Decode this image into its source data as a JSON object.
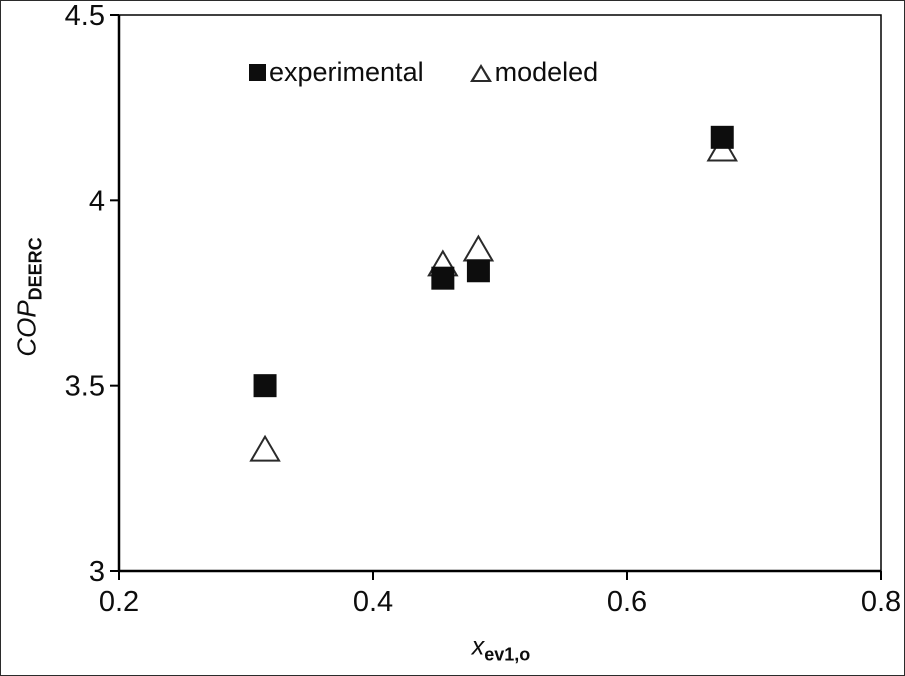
{
  "figure": {
    "background": "#ffffff",
    "border_color": "#2b2b2b"
  },
  "axes": {
    "ylabel_main": "COP",
    "ylabel_sub": "DEERC",
    "xlabel_main": "x",
    "xlabel_sub": "ev1,o"
  },
  "legend": {
    "items": [
      {
        "label": "experimental",
        "marker": "filled-square"
      },
      {
        "label": "modeled",
        "marker": "open-triangle"
      }
    ]
  },
  "chart_data": {
    "type": "scatter",
    "title": "",
    "xlabel": "x_ev1,o",
    "ylabel": "COP_DEERC",
    "xlim": [
      0.2,
      0.8
    ],
    "ylim": [
      3,
      4.5
    ],
    "xticks": [
      0.2,
      0.4,
      0.6,
      0.8
    ],
    "yticks": [
      3,
      3.5,
      4,
      4.5
    ],
    "grid": false,
    "legend_position": "top-inside",
    "marker_color": "#0d0d0d",
    "series": [
      {
        "name": "experimental",
        "marker": "filled-square",
        "color": "#0d0d0d",
        "points": [
          [
            0.315,
            3.5
          ],
          [
            0.455,
            3.79
          ],
          [
            0.483,
            3.81
          ],
          [
            0.675,
            4.17
          ]
        ]
      },
      {
        "name": "modeled",
        "marker": "open-triangle",
        "color": "#2a2a2a",
        "points": [
          [
            0.315,
            3.33
          ],
          [
            0.455,
            3.83
          ],
          [
            0.483,
            3.87
          ],
          [
            0.675,
            4.14
          ]
        ]
      }
    ]
  }
}
